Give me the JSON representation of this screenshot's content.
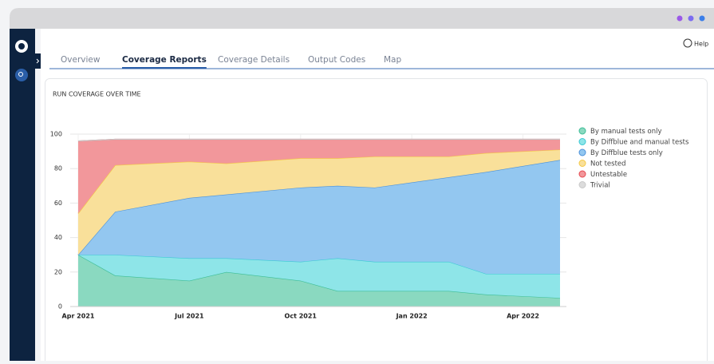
{
  "tabs": [
    "Overview",
    "Coverage Reports",
    "Coverage Details",
    "Output Codes",
    "Map"
  ],
  "help": "Help",
  "chart_data": {
    "type": "stacked-area",
    "title": "RUN COVERAGE OVER TIME",
    "x": [
      "2021-04",
      "2021-05",
      "2021-07",
      "2021-08",
      "2021-10",
      "2021-11",
      "2021-12",
      "2022-02",
      "2022-03",
      "2022-05"
    ],
    "xlim": [
      "2021-04",
      "2022-05"
    ],
    "xticks": [
      {
        "value": "2021-04",
        "label": "Apr 2021"
      },
      {
        "value": "2021-07",
        "label": "Jul 2021"
      },
      {
        "value": "2021-10",
        "label": "Oct 2021"
      },
      {
        "value": "2022-01",
        "label": "Jan 2022"
      },
      {
        "value": "2022-04",
        "label": "Apr 2022"
      }
    ],
    "ylim": [
      0,
      100
    ],
    "yticks": [
      0,
      20,
      40,
      60,
      80,
      100
    ],
    "grid": true,
    "legend": "right",
    "series": [
      {
        "name": "By manual tests only",
        "color": "#8ad9c0",
        "line": "#3cbd96",
        "values": [
          30,
          18,
          15,
          20,
          15,
          9,
          9,
          9,
          7,
          5
        ]
      },
      {
        "name": "By Diffblue and manual tests",
        "color": "#8ee5e8",
        "line": "#39c8d4",
        "values": [
          0,
          12,
          13,
          8,
          11,
          19,
          17,
          17,
          12,
          14
        ]
      },
      {
        "name": "By Diffblue tests only",
        "color": "#93c7f0",
        "line": "#4a90d9",
        "values": [
          0,
          25,
          35,
          37,
          43,
          42,
          43,
          49,
          59,
          66
        ]
      },
      {
        "name": "Not tested",
        "color": "#f9e09a",
        "line": "#f5c842",
        "values": [
          24,
          27,
          21,
          18,
          17,
          16,
          18,
          12,
          11,
          6
        ]
      },
      {
        "name": "Untestable",
        "color": "#f2979b",
        "line": "#e5484f",
        "values": [
          42,
          15,
          13,
          14,
          11,
          11,
          10,
          10,
          8,
          6
        ]
      },
      {
        "name": "Trivial",
        "color": "#dcdcdc",
        "line": "#c8c8c8",
        "values": [
          0,
          0,
          0,
          0,
          0,
          0,
          0,
          0,
          0,
          0
        ]
      }
    ]
  }
}
